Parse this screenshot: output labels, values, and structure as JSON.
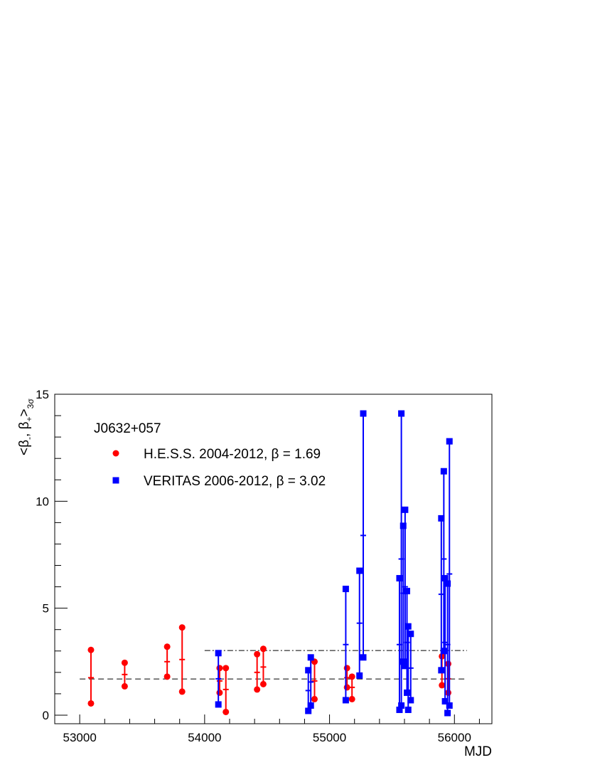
{
  "chart_data": {
    "type": "scatter",
    "source_label": "J0632+057",
    "xlabel": "MJD",
    "ylabel_main": "<β",
    "ylabel_sub1": "-",
    "ylabel_mid": ", β",
    "ylabel_sub2": "+",
    "ylabel_end": ">",
    "ylabel_subscript": "3σ",
    "xlim": [
      52800,
      56300
    ],
    "ylim": [
      -0.4,
      15
    ],
    "x_ticks": [
      53000,
      54000,
      55000,
      56000
    ],
    "x_tick_labels": [
      "53000",
      "54000",
      "55000",
      "56000"
    ],
    "y_ticks": [
      0,
      5,
      10,
      15
    ],
    "y_tick_labels": [
      "0",
      "5",
      "10",
      "15"
    ],
    "series": [
      {
        "name": "H.E.S.S. 2004-2012, β = 1.69",
        "marker": "circle",
        "color": "#ff0000",
        "beta_line": 1.69,
        "beta_line_style": "dashed",
        "beta_line_range": [
          53000,
          56100
        ],
        "points": [
          {
            "x": 53090,
            "low": 0.55,
            "mid": 1.75,
            "high": 3.05
          },
          {
            "x": 53360,
            "low": 1.35,
            "mid": 1.9,
            "high": 2.45
          },
          {
            "x": 53700,
            "low": 1.8,
            "mid": 2.5,
            "high": 3.2
          },
          {
            "x": 53820,
            "low": 1.1,
            "mid": 2.6,
            "high": 4.1
          },
          {
            "x": 54120,
            "low": 1.05,
            "mid": 1.6,
            "high": 2.2
          },
          {
            "x": 54170,
            "low": 0.15,
            "mid": 1.2,
            "high": 2.2
          },
          {
            "x": 54420,
            "low": 1.2,
            "mid": 2.0,
            "high": 2.85
          },
          {
            "x": 54470,
            "low": 1.45,
            "mid": 2.25,
            "high": 3.1
          },
          {
            "x": 54880,
            "low": 0.75,
            "mid": 1.6,
            "high": 2.5
          },
          {
            "x": 55140,
            "low": 1.3,
            "mid": 1.75,
            "high": 2.2
          },
          {
            "x": 55180,
            "low": 0.75,
            "mid": 1.3,
            "high": 1.8
          },
          {
            "x": 55900,
            "low": 1.4,
            "mid": 2.05,
            "high": 2.75
          },
          {
            "x": 55950,
            "low": 1.05,
            "mid": 1.7,
            "high": 2.4
          }
        ]
      },
      {
        "name": "VERITAS 2006-2012, β = 3.02",
        "marker": "square",
        "color": "#0000ff",
        "beta_line": 3.02,
        "beta_line_style": "dash-dot",
        "beta_line_range": [
          54000,
          56100
        ],
        "points": [
          {
            "x": 54110,
            "low": 0.5,
            "mid": 1.7,
            "high": 2.9
          },
          {
            "x": 54830,
            "low": 0.2,
            "mid": 1.15,
            "high": 2.1
          },
          {
            "x": 54850,
            "low": 0.45,
            "mid": 1.55,
            "high": 2.7
          },
          {
            "x": 55130,
            "low": 0.7,
            "mid": 3.3,
            "high": 5.9
          },
          {
            "x": 55240,
            "low": 1.85,
            "mid": 4.3,
            "high": 6.75
          },
          {
            "x": 55270,
            "low": 2.7,
            "mid": 8.4,
            "high": 14.1
          },
          {
            "x": 55560,
            "low": 0.25,
            "mid": 3.3,
            "high": 6.4
          },
          {
            "x": 55575,
            "low": 0.45,
            "mid": 7.3,
            "high": 14.1
          },
          {
            "x": 55590,
            "low": 2.5,
            "mid": 5.7,
            "high": 8.85
          },
          {
            "x": 55605,
            "low": 2.3,
            "mid": 6.0,
            "high": 9.6
          },
          {
            "x": 55620,
            "low": 1.05,
            "mid": 3.4,
            "high": 5.8
          },
          {
            "x": 55630,
            "low": 0.25,
            "mid": 2.2,
            "high": 4.15
          },
          {
            "x": 55650,
            "low": 0.7,
            "mid": 2.2,
            "high": 3.8
          },
          {
            "x": 55895,
            "low": 2.1,
            "mid": 5.65,
            "high": 9.2
          },
          {
            "x": 55915,
            "low": 3.0,
            "mid": 7.3,
            "high": 11.4
          },
          {
            "x": 55925,
            "low": 0.65,
            "mid": 3.4,
            "high": 6.4
          },
          {
            "x": 55945,
            "low": 0.1,
            "mid": 3.3,
            "high": 6.15
          },
          {
            "x": 55960,
            "low": 0.45,
            "mid": 6.6,
            "high": 12.8
          }
        ]
      }
    ]
  }
}
